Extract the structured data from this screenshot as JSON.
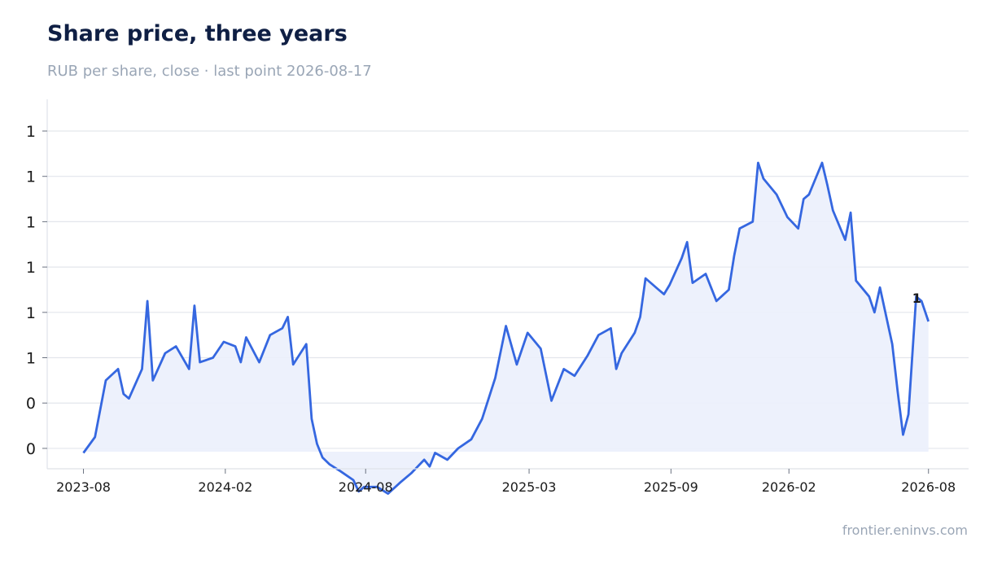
{
  "header": {
    "title": "Share price, three years",
    "subtitle": "RUB per share, close · last point 2026-08-17"
  },
  "footer": {
    "source": "frontier.eninvs.com"
  },
  "colors": {
    "line": "#3567e0",
    "fill": "#ebf0fc",
    "grid": "#e3e6ec",
    "axis": "#dfe2e8"
  },
  "chart_data": {
    "type": "area",
    "title": "Share price, three years",
    "subtitle": "RUB per share, close · last point 2026-08-17",
    "xlabel": "",
    "ylabel": "",
    "grid": "horizontal",
    "legend": "none",
    "last_point_label": "1",
    "y_tick_labels": [
      "0",
      "0",
      "1",
      "1",
      "1",
      "1",
      "1",
      "1"
    ],
    "y_tick_values": [
      0.2,
      0.4,
      0.6,
      0.8,
      1.0,
      1.2,
      1.4,
      1.6
    ],
    "ylim": [
      0.11,
      1.74
    ],
    "x_tick_labels": [
      "2023-08",
      "2024-02",
      "2024-08",
      "2025-03",
      "2025-09",
      "2026-02",
      "2026-08"
    ],
    "x_tick_dates": [
      "2023-08-17",
      "2024-02-17",
      "2024-08-17",
      "2025-03-17",
      "2025-09-17",
      "2026-02-17",
      "2026-08-17"
    ],
    "xlim": [
      "2023-07-01",
      "2026-10-08"
    ],
    "x": [
      "2023-08-17",
      "2023-09-01",
      "2023-09-15",
      "2023-10-01",
      "2023-10-08",
      "2023-10-15",
      "2023-11-01",
      "2023-11-08",
      "2023-11-15",
      "2023-12-01",
      "2023-12-15",
      "2024-01-01",
      "2024-01-08",
      "2024-01-15",
      "2024-02-01",
      "2024-02-15",
      "2024-03-01",
      "2024-03-08",
      "2024-03-15",
      "2024-04-01",
      "2024-04-15",
      "2024-05-01",
      "2024-05-08",
      "2024-05-15",
      "2024-06-01",
      "2024-06-08",
      "2024-06-15",
      "2024-06-22",
      "2024-07-01",
      "2024-07-15",
      "2024-08-01",
      "2024-08-08",
      "2024-08-15",
      "2024-09-01",
      "2024-09-15",
      "2024-10-01",
      "2024-10-15",
      "2024-11-01",
      "2024-11-08",
      "2024-11-15",
      "2024-12-01",
      "2024-12-15",
      "2025-01-01",
      "2025-01-15",
      "2025-02-01",
      "2025-02-15",
      "2025-03-01",
      "2025-03-15",
      "2025-04-01",
      "2025-04-15",
      "2025-05-01",
      "2025-05-15",
      "2025-06-01",
      "2025-06-15",
      "2025-07-01",
      "2025-07-08",
      "2025-07-15",
      "2025-08-01",
      "2025-08-08",
      "2025-08-15",
      "2025-09-01",
      "2025-09-08",
      "2025-09-15",
      "2025-10-01",
      "2025-10-08",
      "2025-10-15",
      "2025-11-01",
      "2025-11-08",
      "2025-11-15",
      "2025-12-01",
      "2025-12-08",
      "2025-12-15",
      "2026-01-01",
      "2026-01-08",
      "2026-01-15",
      "2026-02-01",
      "2026-02-15",
      "2026-03-01",
      "2026-03-08",
      "2026-03-15",
      "2026-04-01",
      "2026-04-08",
      "2026-04-15",
      "2026-05-01",
      "2026-05-08",
      "2026-05-15",
      "2026-06-01",
      "2026-06-08",
      "2026-06-15",
      "2026-07-01",
      "2026-07-08",
      "2026-07-15",
      "2026-07-22",
      "2026-08-01",
      "2026-08-08",
      "2026-08-17"
    ],
    "series": [
      {
        "values": [
          0.18,
          0.25,
          0.5,
          0.55,
          0.44,
          0.42,
          0.55,
          0.85,
          0.5,
          0.62,
          0.65,
          0.55,
          0.83,
          0.58,
          0.6,
          0.67,
          0.65,
          0.58,
          0.69,
          0.58,
          0.7,
          0.73,
          0.78,
          0.57,
          0.66,
          0.33,
          0.22,
          0.16,
          0.13,
          0.1,
          0.06,
          0.01,
          0.03,
          0.03,
          0.0,
          0.05,
          0.09,
          0.15,
          0.12,
          0.18,
          0.15,
          0.2,
          0.24,
          0.33,
          0.51,
          0.74,
          0.57,
          0.71,
          0.64,
          0.41,
          0.55,
          0.52,
          0.61,
          0.7,
          0.73,
          0.55,
          0.62,
          0.71,
          0.78,
          0.95,
          0.9,
          0.88,
          0.92,
          1.04,
          1.11,
          0.93,
          0.97,
          0.91,
          0.85,
          0.9,
          1.05,
          1.17,
          1.2,
          1.46,
          1.39,
          1.32,
          1.22,
          1.17,
          1.3,
          1.32,
          1.46,
          1.36,
          1.25,
          1.12,
          1.24,
          0.94,
          0.87,
          0.8,
          0.91,
          0.66,
          0.45,
          0.26,
          0.35,
          0.87,
          0.85,
          0.76
        ]
      }
    ]
  }
}
